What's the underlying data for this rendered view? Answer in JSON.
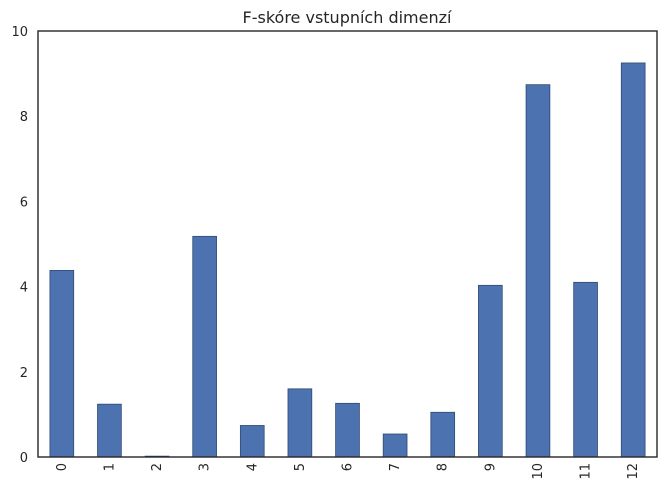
{
  "chart_data": {
    "type": "bar",
    "title": "F-skóre vstupních dimenzí",
    "xlabel": "",
    "ylabel": "",
    "categories": [
      "0",
      "1",
      "2",
      "3",
      "4",
      "5",
      "6",
      "7",
      "8",
      "9",
      "10",
      "11",
      "12"
    ],
    "values": [
      4.38,
      1.24,
      0.02,
      5.18,
      0.74,
      1.6,
      1.26,
      0.54,
      1.05,
      4.03,
      8.74,
      4.1,
      9.25
    ],
    "ylim": [
      0,
      10
    ],
    "yticks": [
      "0",
      "2",
      "4",
      "6",
      "8",
      "10"
    ],
    "grid": false,
    "legend": "none",
    "bar_color": "#4c72b0"
  }
}
